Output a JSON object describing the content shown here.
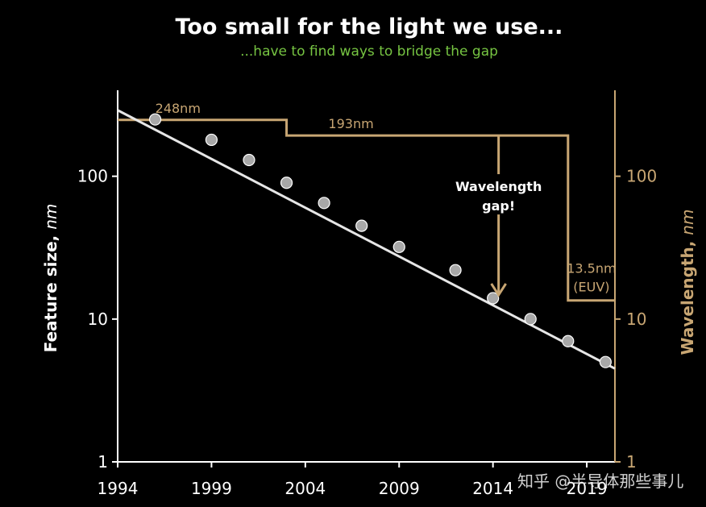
{
  "chart_data": {
    "type": "scatter",
    "title": "Too small for the light we use...",
    "subtitle": "...have to find ways to bridge the gap",
    "ylabel_left_main": "Feature size, ",
    "ylabel_left_unit": "nm",
    "ylabel_right_main": "Wavelength, ",
    "ylabel_right_unit": "nm",
    "y_scale": "log",
    "ylim": [
      1,
      400
    ],
    "xlim": [
      1994,
      2020.5
    ],
    "x_ticks": [
      "1994",
      "1999",
      "2004",
      "2009",
      "2014",
      "2019"
    ],
    "y_ticks_left": [
      "1",
      "10",
      "100"
    ],
    "y_ticks_right": [
      "1",
      "10",
      "100"
    ],
    "feature_size": {
      "x": [
        1996,
        1999,
        2001,
        2003,
        2005,
        2007,
        2009,
        2012,
        2014,
        2016,
        2018,
        2020
      ],
      "y": [
        250,
        180,
        130,
        90,
        65,
        45,
        32,
        22,
        14,
        10,
        7,
        5
      ]
    },
    "trend_line": {
      "x": [
        1994,
        2020.5
      ],
      "y": [
        290,
        4.5
      ]
    },
    "wavelength_steps": [
      {
        "label": "248nm",
        "value": 248,
        "x_start": 1994,
        "x_end": 2003
      },
      {
        "label": "193nm",
        "value": 193,
        "x_start": 2003,
        "x_end": 2018
      },
      {
        "label": "13.5nm",
        "sublabel": "(EUV)",
        "value": 13.5,
        "x_start": 2018,
        "x_end": 2020.5
      }
    ],
    "annotation": {
      "line1": "Wavelength",
      "line2": "gap!",
      "x": 2014.3,
      "y_from": 193,
      "y_to": 14
    },
    "colors": {
      "background": "#000000",
      "points": "#a8a8a8",
      "trend": "#e6e6e6",
      "wavelength": "#c8a673",
      "axis": "#ffffff",
      "subtitle": "#76c442"
    }
  },
  "watermark": "知乎 @半导体那些事儿"
}
